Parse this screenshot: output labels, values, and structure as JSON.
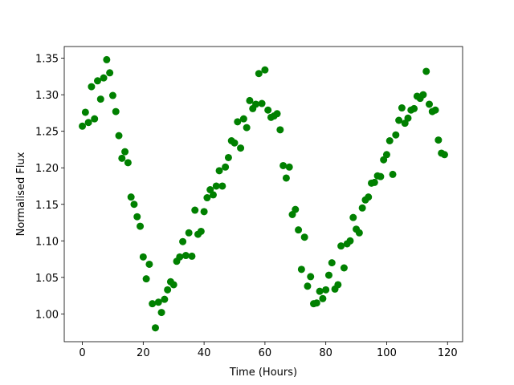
{
  "chart_data": {
    "type": "scatter",
    "xlabel": "Time (Hours)",
    "ylabel": "Normalised Flux",
    "x": [
      0,
      1,
      2,
      3,
      4,
      5,
      6,
      7,
      8,
      9,
      10,
      11,
      12,
      13,
      14,
      15,
      16,
      17,
      18,
      19,
      20,
      21,
      22,
      23,
      24,
      25,
      26,
      27,
      28,
      29,
      30,
      31,
      32,
      33,
      34,
      35,
      36,
      37,
      38,
      39,
      40,
      41,
      42,
      43,
      44,
      45,
      46,
      47,
      48,
      49,
      50,
      51,
      52,
      53,
      54,
      55,
      56,
      57,
      58,
      59,
      60,
      61,
      62,
      63,
      64,
      65,
      66,
      67,
      68,
      69,
      70,
      71,
      72,
      73,
      74,
      75,
      76,
      77,
      78,
      79,
      80,
      81,
      82,
      83,
      84,
      85,
      86,
      87,
      88,
      89,
      90,
      91,
      92,
      93,
      94,
      95,
      96,
      97,
      98,
      99,
      100,
      101,
      102,
      103,
      104,
      105,
      106,
      107,
      108,
      109,
      110,
      111,
      112,
      113,
      114,
      115,
      116,
      117,
      118,
      119
    ],
    "values": [
      1.257,
      1.276,
      1.262,
      1.311,
      1.267,
      1.319,
      1.294,
      1.323,
      1.348,
      1.33,
      1.299,
      1.277,
      1.244,
      1.213,
      1.222,
      1.207,
      1.16,
      1.15,
      1.133,
      1.12,
      1.078,
      1.048,
      1.068,
      1.014,
      0.981,
      1.016,
      1.002,
      1.02,
      1.033,
      1.044,
      1.04,
      1.072,
      1.078,
      1.099,
      1.08,
      1.111,
      1.079,
      1.142,
      1.109,
      1.113,
      1.14,
      1.159,
      1.17,
      1.163,
      1.175,
      1.196,
      1.175,
      1.201,
      1.214,
      1.237,
      1.234,
      1.263,
      1.227,
      1.267,
      1.255,
      1.292,
      1.281,
      1.287,
      1.329,
      1.288,
      1.334,
      1.279,
      1.269,
      1.271,
      1.274,
      1.252,
      1.203,
      1.186,
      1.201,
      1.136,
      1.143,
      1.115,
      1.061,
      1.105,
      1.038,
      1.051,
      1.014,
      1.015,
      1.031,
      1.021,
      1.033,
      1.053,
      1.07,
      1.034,
      1.04,
      1.093,
      1.063,
      1.096,
      1.1,
      1.132,
      1.116,
      1.111,
      1.145,
      1.156,
      1.16,
      1.179,
      1.18,
      1.189,
      1.188,
      1.211,
      1.218,
      1.237,
      1.191,
      1.245,
      1.265,
      1.282,
      1.261,
      1.268,
      1.279,
      1.281,
      1.298,
      1.295,
      1.3,
      1.332,
      1.287,
      1.277,
      1.279,
      1.238,
      1.22,
      1.218
    ],
    "color": "#008000",
    "xlim": [
      -5.95,
      124.95
    ],
    "ylim": [
      0.962,
      1.366
    ],
    "xticks": [
      0,
      20,
      40,
      60,
      80,
      100,
      120
    ],
    "yticks": [
      {
        "value": 1.0,
        "label": "1.00"
      },
      1.05,
      {
        "value": 1.1,
        "label": "1.10"
      },
      1.15,
      {
        "value": 1.2,
        "label": "1.20"
      },
      1.25,
      {
        "value": 1.3,
        "label": "1.30"
      },
      1.35
    ]
  }
}
